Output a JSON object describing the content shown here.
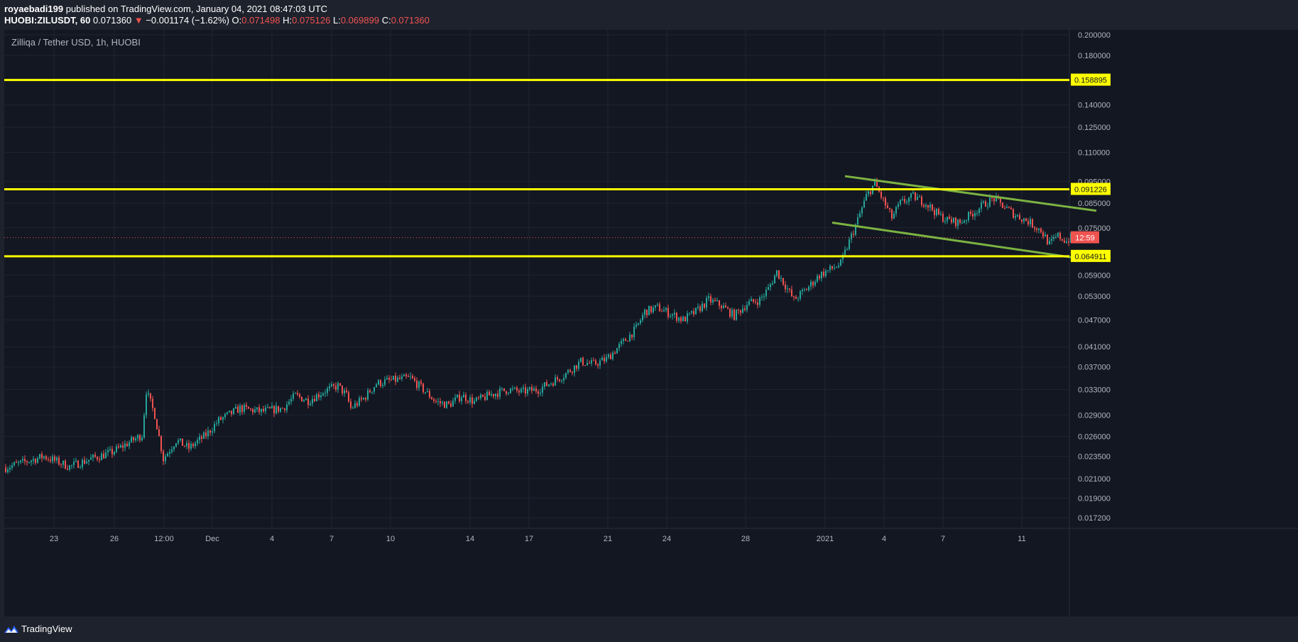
{
  "header": {
    "author": "royaebadi199",
    "published_text": " published on TradingView.com, January 04, 2021 08:47:03 UTC",
    "symbol": "HUOBI:ZILUSDT, 60",
    "last": "0.071360",
    "change_arrow": "▼",
    "change": "−0.001174 (−1.62%)",
    "o_label": "O:",
    "o_val": "0.071498",
    "h_label": "H:",
    "h_val": "0.075126",
    "l_label": "L:",
    "l_val": "0.069899",
    "c_label": "C:",
    "c_val": "0.071360"
  },
  "footer": {
    "brand": "TradingView",
    "logo_icon": "tradingview-logo-icon"
  },
  "colors": {
    "bg": "#131722",
    "grid": "#1f2433",
    "up": "#26a69a",
    "down": "#ef5350",
    "hline": "#ffff00",
    "channel": "#7cb342",
    "axis_text": "#b2b5be"
  },
  "chart_data": {
    "type": "candlestick",
    "title": "Zilliqa / Tether USD, 1h, HUOBI",
    "y_scale": "log",
    "ylim": [
      0.0163,
      0.205
    ],
    "y_ticks": [
      "0.200000",
      "0.180000",
      "0.140000",
      "0.125000",
      "0.110000",
      "0.095000",
      "0.085000",
      "0.075000",
      "0.059000",
      "0.053000",
      "0.047000",
      "0.041000",
      "0.037000",
      "0.033000",
      "0.029000",
      "0.026000",
      "0.023500",
      "0.021000",
      "0.019000",
      "0.017200"
    ],
    "x_ticks": [
      "23",
      "26",
      "12:00",
      "Dec",
      "4",
      "7",
      "10",
      "14",
      "17",
      "21",
      "24",
      "28",
      "2021",
      "4",
      "7",
      "11"
    ],
    "horizontal_levels": [
      "0.158895",
      "0.091226",
      "0.064911"
    ],
    "current_price": "0.071360",
    "countdown": "12:59",
    "price_path": [
      [
        0,
        0.0222
      ],
      [
        18,
        0.0235
      ],
      [
        30,
        0.0223
      ],
      [
        40,
        0.0232
      ],
      [
        50,
        0.024
      ],
      [
        64,
        0.0262
      ],
      [
        66,
        0.0328
      ],
      [
        70,
        0.029
      ],
      [
        74,
        0.0232
      ],
      [
        80,
        0.0255
      ],
      [
        86,
        0.0245
      ],
      [
        94,
        0.0262
      ],
      [
        100,
        0.0282
      ],
      [
        110,
        0.03
      ],
      [
        120,
        0.0295
      ],
      [
        130,
        0.03
      ],
      [
        136,
        0.032
      ],
      [
        142,
        0.0312
      ],
      [
        150,
        0.0328
      ],
      [
        156,
        0.0336
      ],
      [
        160,
        0.032
      ],
      [
        162,
        0.03
      ],
      [
        168,
        0.0315
      ],
      [
        174,
        0.034
      ],
      [
        180,
        0.0345
      ],
      [
        190,
        0.035
      ],
      [
        196,
        0.033
      ],
      [
        202,
        0.031
      ],
      [
        208,
        0.0305
      ],
      [
        214,
        0.032
      ],
      [
        220,
        0.031
      ],
      [
        228,
        0.0322
      ],
      [
        236,
        0.033
      ],
      [
        242,
        0.0326
      ],
      [
        250,
        0.033
      ],
      [
        256,
        0.0342
      ],
      [
        262,
        0.0355
      ],
      [
        270,
        0.038
      ],
      [
        276,
        0.0375
      ],
      [
        282,
        0.0385
      ],
      [
        290,
        0.042
      ],
      [
        296,
        0.045
      ],
      [
        300,
        0.049
      ],
      [
        306,
        0.05
      ],
      [
        312,
        0.0485
      ],
      [
        318,
        0.047
      ],
      [
        324,
        0.049
      ],
      [
        330,
        0.052
      ],
      [
        336,
        0.0505
      ],
      [
        342,
        0.048
      ],
      [
        348,
        0.051
      ],
      [
        354,
        0.052
      ],
      [
        358,
        0.055
      ],
      [
        362,
        0.06
      ],
      [
        366,
        0.056
      ],
      [
        370,
        0.052
      ],
      [
        376,
        0.055
      ],
      [
        382,
        0.059
      ],
      [
        388,
        0.061
      ],
      [
        392,
        0.0625
      ],
      [
        396,
        0.07
      ],
      [
        400,
        0.078
      ],
      [
        404,
        0.088
      ],
      [
        408,
        0.094
      ],
      [
        412,
        0.086
      ],
      [
        416,
        0.079
      ],
      [
        420,
        0.085
      ],
      [
        426,
        0.088
      ],
      [
        432,
        0.085
      ],
      [
        438,
        0.08
      ],
      [
        442,
        0.078
      ],
      [
        448,
        0.077
      ],
      [
        454,
        0.081
      ],
      [
        460,
        0.085
      ],
      [
        464,
        0.087
      ],
      [
        468,
        0.084
      ],
      [
        474,
        0.08
      ],
      [
        480,
        0.0775
      ],
      [
        486,
        0.074
      ],
      [
        490,
        0.069
      ],
      [
        494,
        0.072
      ],
      [
        498,
        0.07
      ],
      [
        500,
        0.0714
      ]
    ],
    "channel_upper": [
      [
        394,
        0.0975
      ],
      [
        512,
        0.0818
      ]
    ],
    "channel_lower": [
      [
        388,
        0.077
      ],
      [
        506,
        0.064
      ]
    ]
  }
}
